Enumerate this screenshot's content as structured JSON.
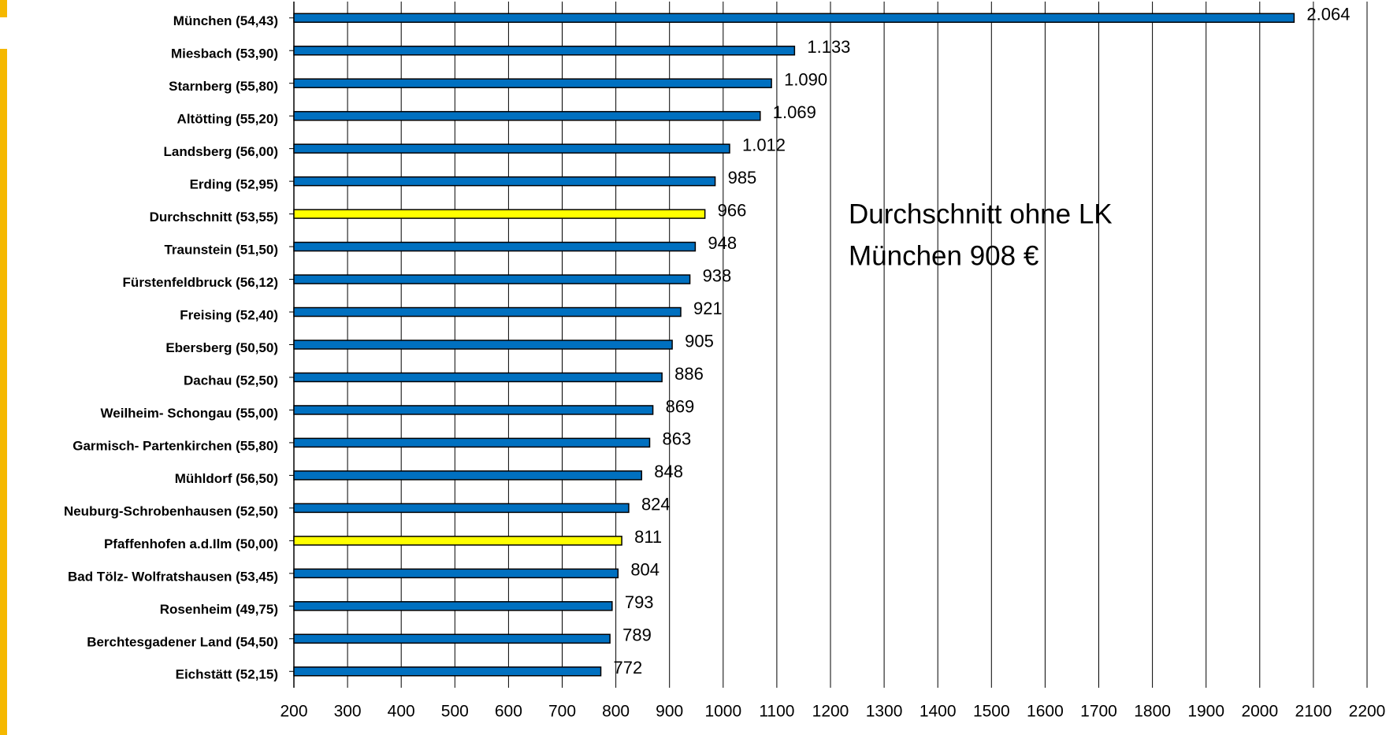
{
  "chart_data": {
    "type": "bar",
    "orientation": "horizontal",
    "categories": [
      "München (54,43)",
      "Miesbach (53,90)",
      "Starnberg (55,80)",
      "Altötting (55,20)",
      "Landsberg (56,00)",
      "Erding (52,95)",
      "Durchschnitt (53,55)",
      "Traunstein (51,50)",
      "Fürstenfeldbruck (56,12)",
      "Freising (52,40)",
      "Ebersberg (50,50)",
      "Dachau (52,50)",
      "Weilheim- Schongau (55,00)",
      "Garmisch- Partenkirchen (55,80)",
      "Mühldorf (56,50)",
      "Neuburg-Schrobenhausen (52,50)",
      "Pfaffenhofen a.d.Ilm (50,00)",
      "Bad Tölz- Wolfratshausen (53,45)",
      "Rosenheim (49,75)",
      "Berchtesgadener Land (54,50)",
      "Eichstätt (52,15)"
    ],
    "values": [
      2064,
      1133,
      1090,
      1069,
      1012,
      985,
      966,
      948,
      938,
      921,
      905,
      886,
      869,
      863,
      848,
      824,
      811,
      804,
      793,
      789,
      772
    ],
    "value_labels": [
      "2.064",
      "1.133",
      "1.090",
      "1.069",
      "1.012",
      "985",
      "966",
      "948",
      "938",
      "921",
      "905",
      "886",
      "869",
      "863",
      "848",
      "824",
      "811",
      "804",
      "793",
      "789",
      "772"
    ],
    "colors": [
      "#0070c0",
      "#0070c0",
      "#0070c0",
      "#0070c0",
      "#0070c0",
      "#0070c0",
      "#ffff00",
      "#0070c0",
      "#0070c0",
      "#0070c0",
      "#0070c0",
      "#0070c0",
      "#0070c0",
      "#0070c0",
      "#0070c0",
      "#0070c0",
      "#ffff00",
      "#0070c0",
      "#0070c0",
      "#0070c0",
      "#0070c0"
    ],
    "xlim": [
      200,
      2200
    ],
    "xticks": [
      200,
      300,
      400,
      500,
      600,
      700,
      800,
      900,
      1000,
      1100,
      1200,
      1300,
      1400,
      1500,
      1600,
      1700,
      1800,
      1900,
      2000,
      2100,
      2200
    ],
    "grid": true,
    "annotation": [
      "Durchschnitt ohne LK",
      "München 908 €"
    ]
  }
}
